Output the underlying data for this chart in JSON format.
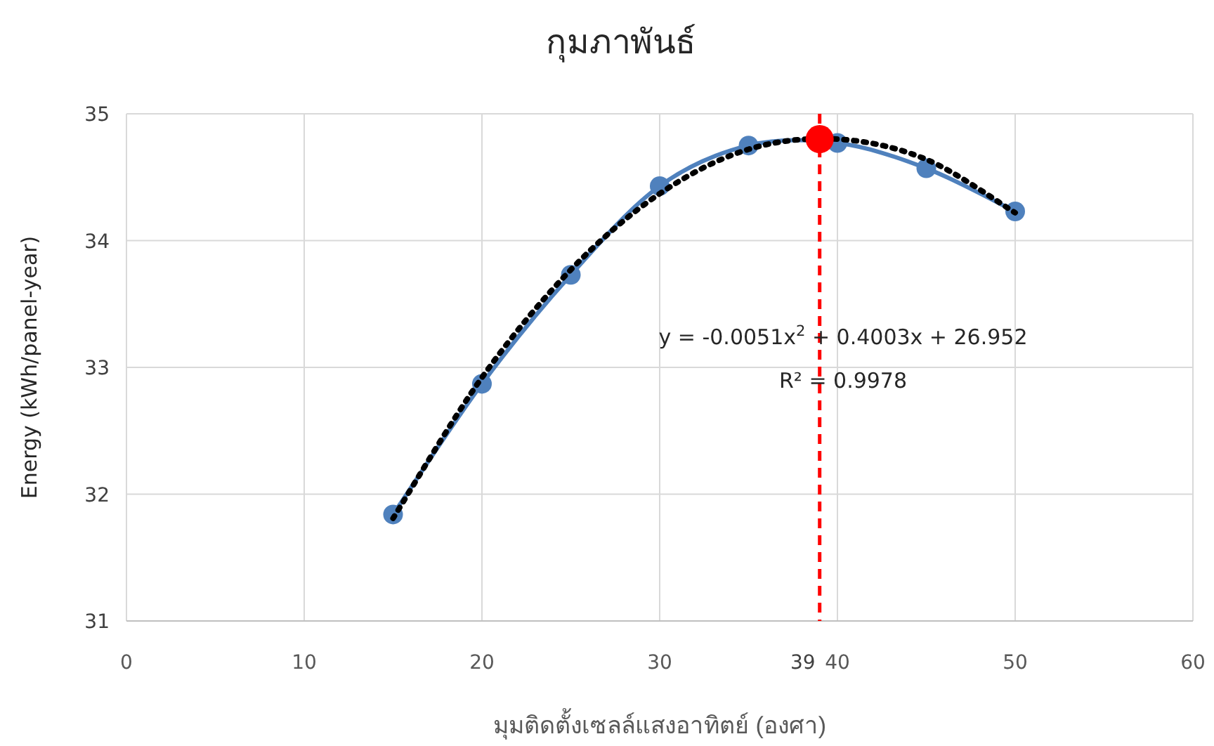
{
  "chart_data": {
    "type": "line",
    "title": "กุมภาพันธ์",
    "xlabel": "มุมติดตั้งเซลล์แสงอาทิตย์ (องศา)",
    "ylabel": "Energy (kWh/panel-year)",
    "annotations": [
      "y = -0.0051x$^{2}$ + 0.4003x + 26.952",
      "R² = 0.9978"
    ],
    "xlim": [
      0,
      60
    ],
    "xticks": [
      0,
      10,
      20,
      30,
      40,
      50,
      60
    ],
    "ylim": [
      31,
      35
    ],
    "yticks": [
      31,
      32,
      33,
      34,
      35
    ],
    "grid": true,
    "series": [
      {
        "color": "#4f81bd",
        "marker": "circle",
        "line_style": "solid",
        "x": [
          15,
          20,
          25,
          30,
          35,
          40,
          45,
          50
        ],
        "values": [
          31.84,
          32.87,
          33.73,
          34.43,
          34.75,
          34.77,
          34.57,
          34.23
        ]
      },
      {
        "color": "#000000",
        "marker": "none",
        "line_style": "dotted",
        "x": [
          15,
          20,
          25,
          30,
          35,
          40,
          45,
          50
        ],
        "values": [
          31.81,
          32.92,
          33.77,
          34.37,
          34.72,
          34.8,
          34.64,
          34.22
        ]
      },
      {
        "type": "scatter",
        "color": "#ff0000",
        "marker": "circle",
        "x": [
          39
        ],
        "values": [
          34.8
        ]
      }
    ],
    "ref_lines": [
      {
        "axis": "x",
        "value": 39,
        "label": "39",
        "color": "#ff0000",
        "line_style": "dashed"
      }
    ]
  }
}
